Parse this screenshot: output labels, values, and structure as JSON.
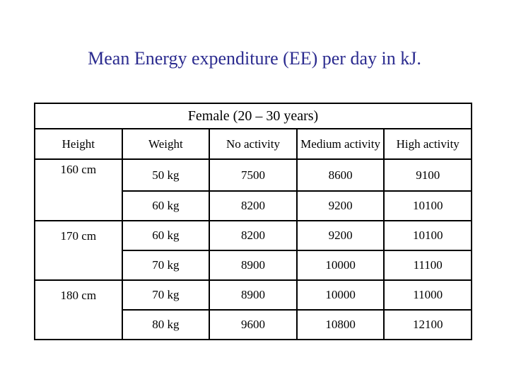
{
  "title": "Mean Energy expenditure (EE) per day in kJ.",
  "table": {
    "caption": "Female (20 – 30 years)",
    "headers": [
      "Height",
      "Weight",
      "No activity",
      "Medium activity",
      "High activity"
    ],
    "rows": [
      {
        "height": "160 cm",
        "weight": "50 kg",
        "no": "7500",
        "medium": "8600",
        "high": "9100"
      },
      {
        "height": "",
        "weight": "60 kg",
        "no": "8200",
        "medium": "9200",
        "high": "10100"
      },
      {
        "height": "170 cm",
        "weight": "60 kg",
        "no": "8200",
        "medium": "9200",
        "high": "10100"
      },
      {
        "height": "",
        "weight": "70 kg",
        "no": "8900",
        "medium": "10000",
        "high": "11100"
      },
      {
        "height": "180 cm",
        "weight": "70 kg",
        "no": "8900",
        "medium": "10000",
        "high": "11000"
      },
      {
        "height": "",
        "weight": "80 kg",
        "no": "9600",
        "medium": "10800",
        "high": "12100"
      }
    ]
  }
}
